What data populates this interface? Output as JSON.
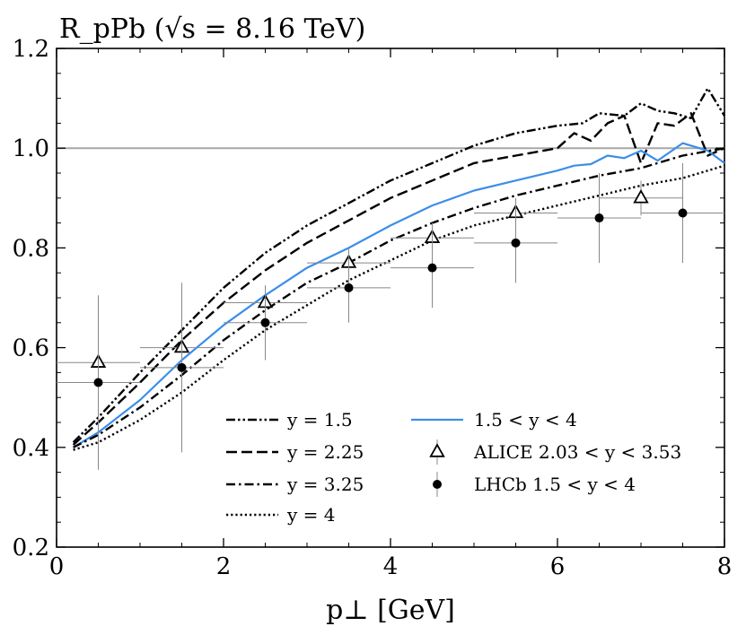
{
  "chart_data": {
    "type": "line",
    "title": "R_pPb (√s = 8.16 TeV)",
    "title_parts": {
      "symbol": "R",
      "subscript": "pPb",
      "energy": "8.16 TeV"
    },
    "xlabel": "p⊥ [GeV]",
    "xlabel_parts": {
      "symbol": "p",
      "subscript": "⊥",
      "unit": "[GeV]"
    },
    "ylabel": "",
    "xlim": [
      0,
      8
    ],
    "ylim": [
      0.2,
      1.2
    ],
    "xticks": [
      0,
      2,
      4,
      6,
      8
    ],
    "xtick_labels": [
      "0",
      "2",
      "4",
      "6",
      "8"
    ],
    "yticks": [
      0.2,
      0.4,
      0.6,
      0.8,
      1.0,
      1.2
    ],
    "ytick_labels": [
      "0.2",
      "0.4",
      "0.6",
      "0.8",
      "1.0",
      "1.2"
    ],
    "reference_line": 1.0,
    "series": [
      {
        "name": "y = 1.5",
        "style": "dashdotdot",
        "color": "#000000",
        "x": [
          0.2,
          0.5,
          1.0,
          1.5,
          2.0,
          2.5,
          3.0,
          3.5,
          4.0,
          4.5,
          5.0,
          5.5,
          6.0,
          6.3,
          6.5,
          6.8,
          7.0,
          7.2,
          7.4,
          7.6,
          7.8,
          8.0
        ],
        "y": [
          0.41,
          0.46,
          0.55,
          0.635,
          0.72,
          0.79,
          0.845,
          0.89,
          0.935,
          0.97,
          1.005,
          1.03,
          1.045,
          1.05,
          1.07,
          1.065,
          1.09,
          1.075,
          1.07,
          1.06,
          1.12,
          1.065
        ]
      },
      {
        "name": "y = 2.25",
        "style": "dashed",
        "color": "#000000",
        "x": [
          0.2,
          0.5,
          1.0,
          1.5,
          2.0,
          2.5,
          3.0,
          3.5,
          4.0,
          4.5,
          5.0,
          5.5,
          6.0,
          6.2,
          6.4,
          6.6,
          6.8,
          7.0,
          7.2,
          7.4,
          7.6,
          7.8,
          8.0
        ],
        "y": [
          0.405,
          0.45,
          0.53,
          0.615,
          0.69,
          0.755,
          0.81,
          0.855,
          0.9,
          0.935,
          0.97,
          0.985,
          1.0,
          1.03,
          1.015,
          1.05,
          1.065,
          0.97,
          1.05,
          1.045,
          1.07,
          0.985,
          1.0
        ]
      },
      {
        "name": "1.5 < y < 4",
        "style": "solid",
        "color": "#3b8ee8",
        "x": [
          0.2,
          0.5,
          1.0,
          1.5,
          2.0,
          2.5,
          3.0,
          3.5,
          4.0,
          4.5,
          5.0,
          5.5,
          6.0,
          6.2,
          6.4,
          6.6,
          6.8,
          7.0,
          7.2,
          7.5,
          7.8,
          8.0
        ],
        "y": [
          0.4,
          0.43,
          0.495,
          0.575,
          0.645,
          0.705,
          0.76,
          0.8,
          0.845,
          0.885,
          0.915,
          0.935,
          0.955,
          0.965,
          0.968,
          0.985,
          0.98,
          0.995,
          0.975,
          1.01,
          0.995,
          0.97
        ]
      },
      {
        "name": "y = 3.25",
        "style": "dashdot",
        "color": "#000000",
        "x": [
          0.2,
          0.5,
          1.0,
          1.5,
          2.0,
          2.5,
          3.0,
          3.5,
          4.0,
          4.5,
          5.0,
          5.5,
          6.0,
          6.5,
          7.0,
          7.5,
          8.0
        ],
        "y": [
          0.4,
          0.425,
          0.48,
          0.545,
          0.615,
          0.675,
          0.73,
          0.77,
          0.815,
          0.85,
          0.88,
          0.905,
          0.925,
          0.945,
          0.96,
          0.985,
          1.0
        ]
      },
      {
        "name": "y = 4",
        "style": "dotted",
        "color": "#000000",
        "x": [
          0.2,
          0.5,
          1.0,
          1.5,
          2.0,
          2.5,
          3.0,
          3.5,
          4.0,
          4.5,
          5.0,
          5.5,
          6.0,
          6.5,
          7.0,
          7.5,
          8.0
        ],
        "y": [
          0.395,
          0.41,
          0.455,
          0.51,
          0.575,
          0.635,
          0.685,
          0.735,
          0.775,
          0.815,
          0.845,
          0.865,
          0.885,
          0.905,
          0.925,
          0.94,
          0.965
        ]
      }
    ],
    "points": [
      {
        "name": "ALICE  2.03 < y < 3.53",
        "marker": "open-triangle",
        "x": [
          0.5,
          1.5,
          2.5,
          3.5,
          4.5,
          5.5,
          7.0
        ],
        "y": [
          0.57,
          0.6,
          0.69,
          0.77,
          0.82,
          0.87,
          0.9
        ],
        "xerr": [
          0.5,
          0.5,
          0.5,
          0.5,
          0.5,
          0.5,
          0.5
        ],
        "yerr": [
          0.035,
          0.035,
          0.03,
          0.03,
          0.03,
          0.03,
          0.035
        ]
      },
      {
        "name": "LHCb 1.5 < y < 4",
        "marker": "filled-circle",
        "x": [
          0.5,
          1.5,
          2.5,
          3.5,
          4.5,
          5.5,
          6.5,
          7.5
        ],
        "y": [
          0.53,
          0.56,
          0.65,
          0.72,
          0.76,
          0.81,
          0.86,
          0.87
        ],
        "xerr": [
          0.5,
          0.5,
          0.5,
          0.5,
          0.5,
          0.5,
          0.5,
          0.5
        ],
        "yerr": [
          0.175,
          0.17,
          0.075,
          0.07,
          0.08,
          0.08,
          0.09,
          0.1
        ]
      }
    ],
    "legend": {
      "placement": "lower-right",
      "entries_left": [
        "y = 1.5",
        "y = 2.25",
        "y = 3.25",
        "y = 4"
      ],
      "entries_right": [
        "1.5 < y < 4",
        "ALICE  2.03 < y < 3.53",
        "LHCb 1.5 < y < 4"
      ]
    }
  }
}
